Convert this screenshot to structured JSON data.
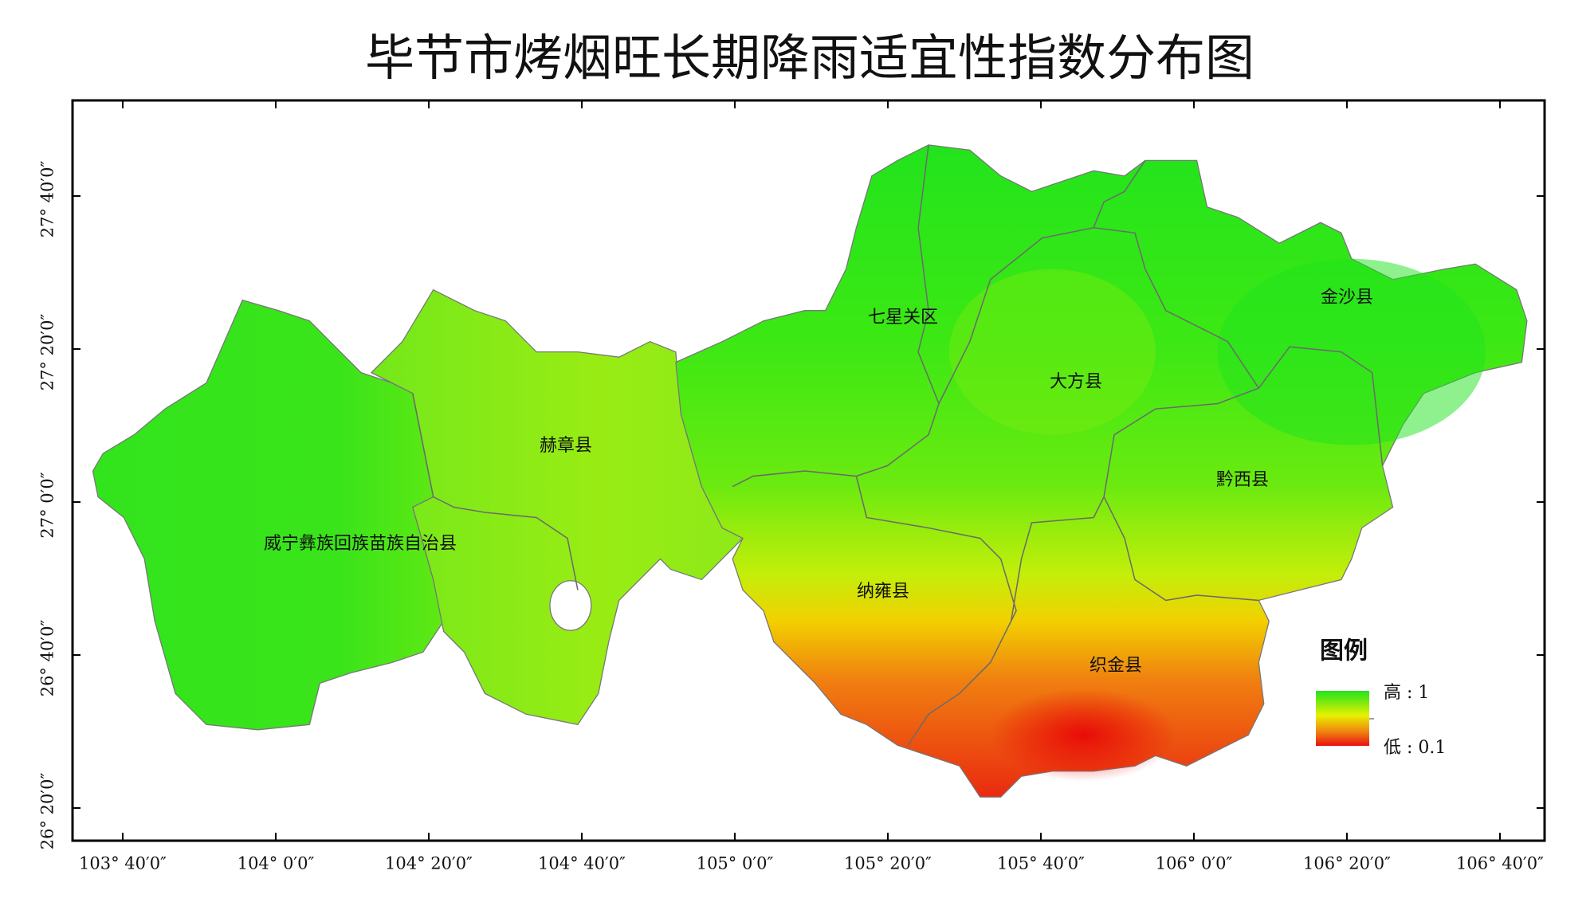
{
  "title": "毕节市烤烟旺长期降雨适宜性指数分布图",
  "x_axis": {
    "ticks": [
      "103° 40′0″",
      "104° 0′0″",
      "104° 20′0″",
      "104° 40′0″",
      "105° 0′0″",
      "105° 20′0″",
      "105° 40′0″",
      "106° 0′0″",
      "106° 20′0″",
      "106° 40′0″"
    ]
  },
  "y_axis": {
    "ticks": [
      "26° 20′0″",
      "26° 40′0″",
      "27° 0′0″",
      "27° 20′0″",
      "27° 40′0″"
    ]
  },
  "regions": [
    {
      "label": "七星关区"
    },
    {
      "label": "大方县"
    },
    {
      "label": "金沙县"
    },
    {
      "label": "赫章县"
    },
    {
      "label": "黔西县"
    },
    {
      "label": "威宁彝族回族苗族自治县"
    },
    {
      "label": "纳雍县"
    },
    {
      "label": "织金县"
    }
  ],
  "legend": {
    "title": "图例",
    "high": "高 : 1",
    "low": "低 : 0.1"
  }
}
